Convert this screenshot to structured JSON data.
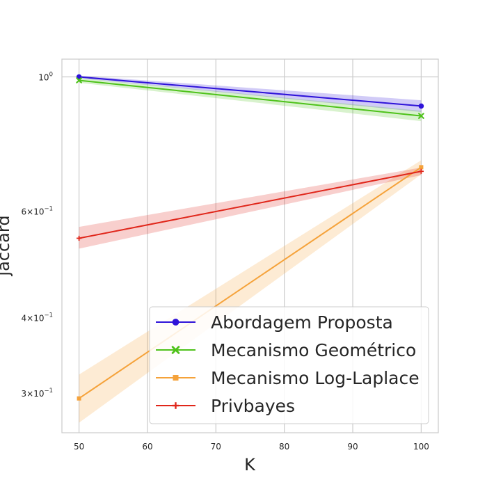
{
  "chart_data": {
    "type": "line",
    "xlabel": "K",
    "ylabel": "jaccard",
    "yscale": "log",
    "xlim": [
      47.5,
      102.5
    ],
    "ylim": [
      0.258,
      1.07
    ],
    "grid": true,
    "legend_position": "lower-right",
    "x_ticks": [
      50,
      60,
      70,
      80,
      90,
      100
    ],
    "x_tick_labels": [
      "50",
      "60",
      "70",
      "80",
      "90",
      "100"
    ],
    "y_ticks": [
      {
        "value": 1.0,
        "base": "10",
        "exp": "0"
      },
      {
        "value": 0.6,
        "mant": "6",
        "base": "10",
        "exp": "−1"
      },
      {
        "value": 0.4,
        "mant": "4",
        "base": "10",
        "exp": "−1"
      },
      {
        "value": 0.3,
        "mant": "3",
        "base": "10",
        "exp": "−1"
      }
    ],
    "x": [
      50,
      100
    ],
    "series": [
      {
        "name": "Abordagem Proposta",
        "color": "#2e13d9",
        "marker": "circle",
        "values": [
          1.0,
          0.895
        ],
        "ci_low": [
          0.995,
          0.875
        ],
        "ci_high": [
          1.005,
          0.915
        ]
      },
      {
        "name": "Mecanismo Geométrico",
        "color": "#4ec21a",
        "marker": "x",
        "values": [
          0.987,
          0.862
        ],
        "ci_low": [
          0.978,
          0.845
        ],
        "ci_high": [
          0.996,
          0.879
        ]
      },
      {
        "name": "Mecanismo Log-Laplace",
        "color": "#f5a23a",
        "marker": "square",
        "values": [
          0.294,
          0.709
        ],
        "ci_low": [
          0.268,
          0.69
        ],
        "ci_high": [
          0.322,
          0.728
        ]
      },
      {
        "name": "Privbayes",
        "color": "#e0261a",
        "marker": "plus",
        "values": [
          0.541,
          0.698
        ],
        "ci_low": [
          0.52,
          0.688
        ],
        "ci_high": [
          0.565,
          0.708
        ]
      }
    ]
  }
}
